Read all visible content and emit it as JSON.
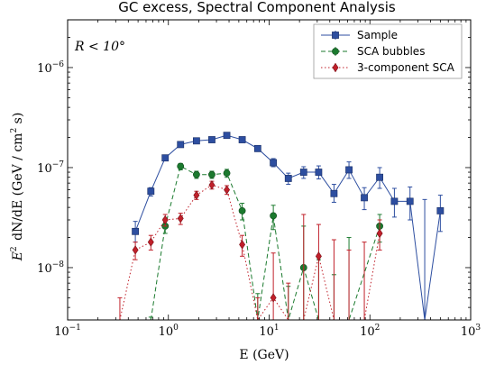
{
  "chart_data": {
    "type": "scatter",
    "title": "GC excess, Spectral Component Analysis",
    "xlabel": "E (GeV)",
    "ylabel": "E² dN/dE (GeV / (cm² s))",
    "annotation": "R < 10°",
    "xscale": "log",
    "yscale": "log",
    "xlim": [
      0.1,
      1000
    ],
    "ylim": [
      3e-09,
      3e-06
    ],
    "x_ticks": [
      {
        "value": 0.1,
        "base": "10",
        "exp": "−1"
      },
      {
        "value": 1,
        "base": "10",
        "exp": "0"
      },
      {
        "value": 10,
        "base": "10",
        "exp": "1"
      },
      {
        "value": 100,
        "base": "10",
        "exp": "2"
      },
      {
        "value": 1000,
        "base": "10",
        "exp": "3"
      }
    ],
    "y_ticks": [
      {
        "value": 1e-08,
        "base": "10",
        "exp": "−8"
      },
      {
        "value": 1e-07,
        "base": "10",
        "exp": "−7"
      },
      {
        "value": 1e-06,
        "base": "10",
        "exp": "−6"
      }
    ],
    "legend_position": "top-right",
    "series": [
      {
        "name": "Sample",
        "color": "#2d4ea0",
        "marker": "square",
        "line": "solid",
        "points": [
          {
            "x": 0.47,
            "y": 2.3e-08,
            "lo": 1.8e-08,
            "hi": 2.9e-08
          },
          {
            "x": 0.67,
            "y": 5.8e-08,
            "lo": 5.2e-08,
            "hi": 6.3e-08
          },
          {
            "x": 0.93,
            "y": 1.25e-07,
            "lo": 1.17e-07,
            "hi": 1.33e-07
          },
          {
            "x": 1.32,
            "y": 1.7e-07,
            "lo": 1.6e-07,
            "hi": 1.8e-07
          },
          {
            "x": 1.9,
            "y": 1.85e-07,
            "lo": 1.77e-07,
            "hi": 1.93e-07
          },
          {
            "x": 2.7,
            "y": 1.9e-07,
            "lo": 1.8e-07,
            "hi": 2e-07
          },
          {
            "x": 3.8,
            "y": 2.1e-07,
            "lo": 2e-07,
            "hi": 2.2e-07
          },
          {
            "x": 5.4,
            "y": 1.9e-07,
            "lo": 1.8e-07,
            "hi": 2e-07
          },
          {
            "x": 7.7,
            "y": 1.55e-07,
            "lo": 1.45e-07,
            "hi": 1.65e-07
          },
          {
            "x": 11,
            "y": 1.12e-07,
            "lo": 1.02e-07,
            "hi": 1.23e-07
          },
          {
            "x": 15.5,
            "y": 7.8e-08,
            "lo": 6.8e-08,
            "hi": 8.8e-08
          },
          {
            "x": 22,
            "y": 9e-08,
            "lo": 7.8e-08,
            "hi": 1.02e-07
          },
          {
            "x": 31,
            "y": 9e-08,
            "lo": 7.7e-08,
            "hi": 1.04e-07
          },
          {
            "x": 44,
            "y": 5.5e-08,
            "lo": 4.5e-08,
            "hi": 6.8e-08
          },
          {
            "x": 62,
            "y": 9.5e-08,
            "lo": 7.8e-08,
            "hi": 1.14e-07
          },
          {
            "x": 88,
            "y": 5e-08,
            "lo": 3.8e-08,
            "hi": 6.3e-08
          },
          {
            "x": 125,
            "y": 8e-08,
            "lo": 6.2e-08,
            "hi": 1e-07
          },
          {
            "x": 175,
            "y": 4.6e-08,
            "lo": 3.2e-08,
            "hi": 6.2e-08
          },
          {
            "x": 250,
            "y": 4.6e-08,
            "lo": 3e-08,
            "hi": 6.4e-08
          },
          {
            "x": 350,
            "y": 3e-09,
            "lo": 3e-09,
            "hi": 4.8e-08
          },
          {
            "x": 500,
            "y": 3.7e-08,
            "lo": 2.3e-08,
            "hi": 5.3e-08
          }
        ]
      },
      {
        "name": "SCA bubbles",
        "color": "#1b7a2e",
        "marker": "circle",
        "line": "dashed",
        "points": [
          {
            "x": 0.67,
            "y": 3e-09,
            "lo": 3e-09,
            "hi": 3.2e-09
          },
          {
            "x": 0.93,
            "y": 2.6e-08,
            "lo": 2.2e-08,
            "hi": 3.1e-08
          },
          {
            "x": 1.32,
            "y": 1.03e-07,
            "lo": 9.5e-08,
            "hi": 1.1e-07
          },
          {
            "x": 1.9,
            "y": 8.5e-08,
            "lo": 7.8e-08,
            "hi": 9.2e-08
          },
          {
            "x": 2.7,
            "y": 8.5e-08,
            "lo": 7.8e-08,
            "hi": 9.2e-08
          },
          {
            "x": 3.8,
            "y": 8.8e-08,
            "lo": 8e-08,
            "hi": 9.6e-08
          },
          {
            "x": 5.4,
            "y": 3.7e-08,
            "lo": 3e-08,
            "hi": 4.4e-08
          },
          {
            "x": 7.7,
            "y": 3e-09,
            "lo": 3e-09,
            "hi": 5.5e-09
          },
          {
            "x": 11,
            "y": 3.3e-08,
            "lo": 2.4e-08,
            "hi": 4.2e-08
          },
          {
            "x": 15.5,
            "y": 3e-09,
            "lo": 3e-09,
            "hi": 6.5e-09
          },
          {
            "x": 22,
            "y": 1e-08,
            "lo": 3e-09,
            "hi": 2.6e-08
          },
          {
            "x": 31,
            "y": 3e-09,
            "lo": 3e-09,
            "hi": 1.2e-08
          },
          {
            "x": 44,
            "y": 3e-09,
            "lo": 3e-09,
            "hi": 8.5e-09
          },
          {
            "x": 62,
            "y": 3e-09,
            "lo": 3e-09,
            "hi": 2e-08
          },
          {
            "x": 125,
            "y": 2.6e-08,
            "lo": 1.8e-08,
            "hi": 3.4e-08
          }
        ]
      },
      {
        "name": "3-component SCA",
        "color": "#c0202a",
        "marker": "diamond",
        "line": "dotted",
        "points": [
          {
            "x": 0.33,
            "y": 3e-09,
            "lo": 3e-09,
            "hi": 5e-09
          },
          {
            "x": 0.47,
            "y": 1.5e-08,
            "lo": 1.2e-08,
            "hi": 1.8e-08
          },
          {
            "x": 0.67,
            "y": 1.8e-08,
            "lo": 1.5e-08,
            "hi": 2.1e-08
          },
          {
            "x": 0.93,
            "y": 3e-08,
            "lo": 2.6e-08,
            "hi": 3.4e-08
          },
          {
            "x": 1.32,
            "y": 3.1e-08,
            "lo": 2.7e-08,
            "hi": 3.5e-08
          },
          {
            "x": 1.9,
            "y": 5.3e-08,
            "lo": 4.8e-08,
            "hi": 5.8e-08
          },
          {
            "x": 2.7,
            "y": 6.7e-08,
            "lo": 6.1e-08,
            "hi": 7.3e-08
          },
          {
            "x": 3.8,
            "y": 6e-08,
            "lo": 5.4e-08,
            "hi": 6.6e-08
          },
          {
            "x": 5.4,
            "y": 1.7e-08,
            "lo": 1.3e-08,
            "hi": 2.1e-08
          },
          {
            "x": 7.7,
            "y": 3e-09,
            "lo": 3e-09,
            "hi": 5e-09
          },
          {
            "x": 11,
            "y": 5e-09,
            "lo": 3e-09,
            "hi": 1.4e-08
          },
          {
            "x": 15.5,
            "y": 3e-09,
            "lo": 3e-09,
            "hi": 7e-09
          },
          {
            "x": 22,
            "y": 3e-09,
            "lo": 3e-09,
            "hi": 3.4e-08
          },
          {
            "x": 31,
            "y": 1.3e-08,
            "lo": 3e-09,
            "hi": 2.7e-08
          },
          {
            "x": 44,
            "y": 3e-09,
            "lo": 3e-09,
            "hi": 1.9e-08
          },
          {
            "x": 62,
            "y": 3e-09,
            "lo": 3e-09,
            "hi": 1.5e-08
          },
          {
            "x": 88,
            "y": 3e-09,
            "lo": 3e-09,
            "hi": 1.8e-08
          },
          {
            "x": 125,
            "y": 2.2e-08,
            "lo": 1.5e-08,
            "hi": 3e-08
          }
        ]
      }
    ]
  }
}
